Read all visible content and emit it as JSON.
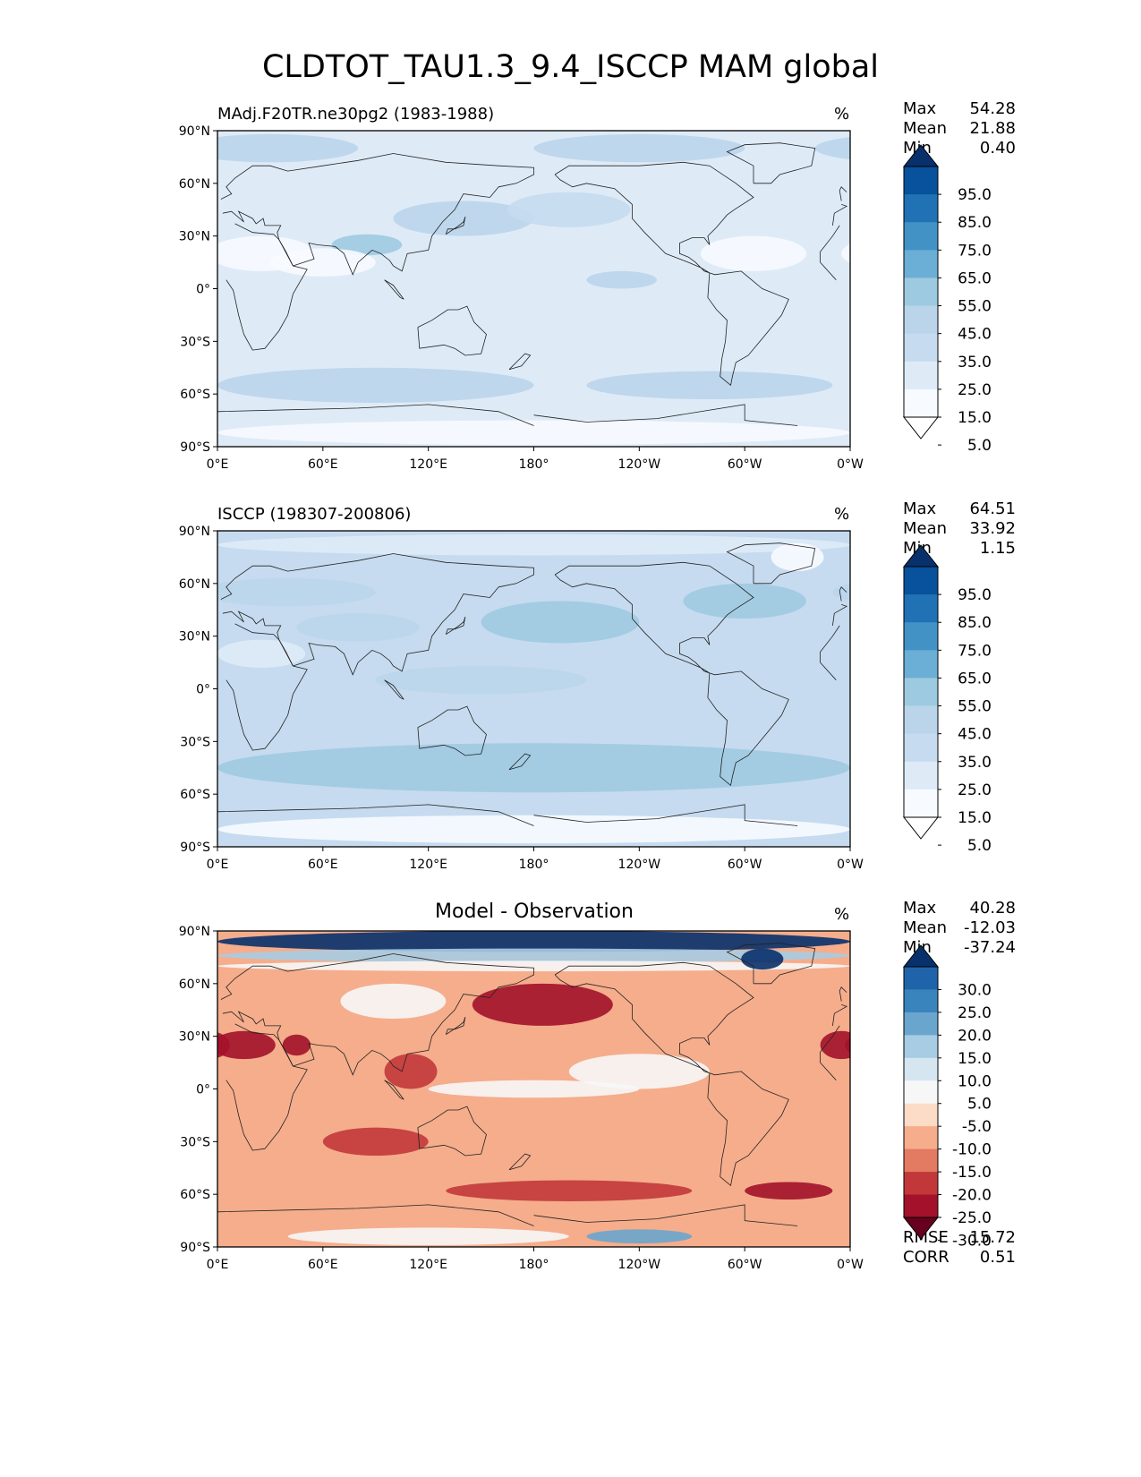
{
  "figure": {
    "title": "CLDTOT_TAU1.3_9.4_ISCCP MAM global"
  },
  "axes": {
    "lat_ticks": [
      "90°N",
      "60°N",
      "30°N",
      "0°",
      "30°S",
      "60°S",
      "90°S"
    ],
    "lon_ticks": [
      "0°E",
      "60°E",
      "120°E",
      "180°",
      "120°W",
      "60°W",
      "0°W"
    ]
  },
  "chart_data": [
    {
      "type": "heatmap",
      "panel": "test",
      "title": "MAdj.F20TR.ne30pg2 (1983-1988)",
      "units": "%",
      "stats": [
        {
          "label": "Max",
          "value": "54.28"
        },
        {
          "label": "Mean",
          "value": "21.88"
        },
        {
          "label": "Min",
          "value": "0.40"
        }
      ],
      "colorbar": {
        "levels": [
          "95.0",
          "85.0",
          "75.0",
          "65.0",
          "55.0",
          "45.0",
          "35.0",
          "25.0",
          "15.0",
          "5.0"
        ],
        "colors": [
          "#08306b",
          "#08519c",
          "#2171b5",
          "#4292c6",
          "#6baed6",
          "#9ecae1",
          "#bad5ea",
          "#c6dbef",
          "#deebf7",
          "#f7fbff",
          "#ffffff"
        ]
      },
      "xlim": [
        0,
        360
      ],
      "ylim": [
        -90,
        90
      ],
      "base_value": 22,
      "anomalies": [
        {
          "lon": 30,
          "lat": 80,
          "rx": 50,
          "ry": 8,
          "value": 40
        },
        {
          "lon": 240,
          "lat": 80,
          "rx": 60,
          "ry": 8,
          "value": 38
        },
        {
          "lon": 85,
          "lat": 25,
          "rx": 20,
          "ry": 6,
          "value": 45
        },
        {
          "lon": 140,
          "lat": 40,
          "rx": 40,
          "ry": 10,
          "value": 35
        },
        {
          "lon": 200,
          "lat": 45,
          "rx": 35,
          "ry": 10,
          "value": 33
        },
        {
          "lon": 230,
          "lat": 5,
          "rx": 20,
          "ry": 5,
          "value": 38
        },
        {
          "lon": 90,
          "lat": -55,
          "rx": 90,
          "ry": 10,
          "value": 38
        },
        {
          "lon": 280,
          "lat": -55,
          "rx": 70,
          "ry": 8,
          "value": 36
        },
        {
          "lon": 25,
          "lat": 20,
          "rx": 30,
          "ry": 10,
          "value": 10
        },
        {
          "lon": 60,
          "lat": 15,
          "rx": 30,
          "ry": 8,
          "value": 12
        },
        {
          "lon": 180,
          "lat": -82,
          "rx": 180,
          "ry": 7,
          "value": 6
        },
        {
          "lon": 305,
          "lat": 20,
          "rx": 30,
          "ry": 10,
          "value": 14
        }
      ]
    },
    {
      "type": "heatmap",
      "panel": "reference",
      "title": "ISCCP (198307-200806)",
      "units": "%",
      "stats": [
        {
          "label": "Max",
          "value": "64.51"
        },
        {
          "label": "Mean",
          "value": "33.92"
        },
        {
          "label": "Min",
          "value": "1.15"
        }
      ],
      "colorbar": {
        "levels": [
          "95.0",
          "85.0",
          "75.0",
          "65.0",
          "55.0",
          "45.0",
          "35.0",
          "25.0",
          "15.0",
          "5.0"
        ],
        "colors": [
          "#08306b",
          "#08519c",
          "#2171b5",
          "#4292c6",
          "#6baed6",
          "#9ecae1",
          "#bad5ea",
          "#c6dbef",
          "#deebf7",
          "#f7fbff",
          "#ffffff"
        ]
      },
      "xlim": [
        0,
        360
      ],
      "ylim": [
        -90,
        90
      ],
      "base_value": 33,
      "anomalies": [
        {
          "lon": 180,
          "lat": -45,
          "rx": 180,
          "ry": 14,
          "value": 50
        },
        {
          "lon": 195,
          "lat": 38,
          "rx": 45,
          "ry": 12,
          "value": 48
        },
        {
          "lon": 300,
          "lat": 50,
          "rx": 35,
          "ry": 10,
          "value": 46
        },
        {
          "lon": 80,
          "lat": 35,
          "rx": 35,
          "ry": 8,
          "value": 42
        },
        {
          "lon": 40,
          "lat": 55,
          "rx": 50,
          "ry": 8,
          "value": 42
        },
        {
          "lon": 180,
          "lat": 82,
          "rx": 180,
          "ry": 6,
          "value": 20
        },
        {
          "lon": 180,
          "lat": -80,
          "rx": 180,
          "ry": 8,
          "value": 14
        },
        {
          "lon": 25,
          "lat": 20,
          "rx": 25,
          "ry": 8,
          "value": 22
        },
        {
          "lon": 330,
          "lat": 75,
          "rx": 15,
          "ry": 8,
          "value": 10
        },
        {
          "lon": 150,
          "lat": 5,
          "rx": 60,
          "ry": 8,
          "value": 40
        }
      ]
    },
    {
      "type": "heatmap",
      "panel": "difference",
      "title": "Model - Observation",
      "units": "%",
      "stats": [
        {
          "label": "Max",
          "value": "40.28"
        },
        {
          "label": "Mean",
          "value": "-12.03"
        },
        {
          "label": "Min",
          "value": "-37.24"
        }
      ],
      "extra_stats": [
        {
          "label": "RMSE",
          "value": "15.72"
        },
        {
          "label": "CORR",
          "value": "0.51"
        }
      ],
      "colorbar": {
        "levels": [
          "30.0",
          "25.0",
          "20.0",
          "15.0",
          "10.0",
          "5.0",
          "-5.0",
          "-10.0",
          "-15.0",
          "-20.0",
          "-25.0",
          "-30.0"
        ],
        "colors": [
          "#08306b",
          "#1f64aa",
          "#3a84bd",
          "#6aa5cd",
          "#a7cce3",
          "#d5e6f1",
          "#f7f7f7",
          "#fcdbc7",
          "#f5ad8c",
          "#e27b62",
          "#c2383a",
          "#a3122a",
          "#67001f"
        ]
      },
      "xlim": [
        0,
        360
      ],
      "ylim": [
        -90,
        90
      ],
      "base_value": -12,
      "anomalies": [
        {
          "lon": 180,
          "lat": 84,
          "rx": 180,
          "ry": 6,
          "value": 35
        },
        {
          "lon": 180,
          "lat": 76,
          "rx": 180,
          "ry": 4,
          "value": 12
        },
        {
          "lon": 180,
          "lat": 70,
          "rx": 180,
          "ry": 3,
          "value": 0
        },
        {
          "lon": 310,
          "lat": 74,
          "rx": 12,
          "ry": 6,
          "value": 30
        },
        {
          "lon": 185,
          "lat": 48,
          "rx": 40,
          "ry": 12,
          "value": -26
        },
        {
          "lon": 15,
          "lat": 25,
          "rx": 18,
          "ry": 8,
          "value": -30
        },
        {
          "lon": 45,
          "lat": 25,
          "rx": 8,
          "ry": 6,
          "value": -28
        },
        {
          "lon": 200,
          "lat": -58,
          "rx": 70,
          "ry": 6,
          "value": -25
        },
        {
          "lon": 325,
          "lat": -58,
          "rx": 25,
          "ry": 5,
          "value": -30
        },
        {
          "lon": 355,
          "lat": 25,
          "rx": 12,
          "ry": 8,
          "value": -28
        },
        {
          "lon": 240,
          "lat": 10,
          "rx": 40,
          "ry": 10,
          "value": -3
        },
        {
          "lon": 180,
          "lat": 0,
          "rx": 60,
          "ry": 5,
          "value": -4
        },
        {
          "lon": 100,
          "lat": 50,
          "rx": 30,
          "ry": 10,
          "value": -4
        },
        {
          "lon": 240,
          "lat": -84,
          "rx": 30,
          "ry": 4,
          "value": 18
        },
        {
          "lon": 120,
          "lat": -84,
          "rx": 80,
          "ry": 5,
          "value": 2
        },
        {
          "lon": 110,
          "lat": 10,
          "rx": 15,
          "ry": 10,
          "value": -22
        },
        {
          "lon": 90,
          "lat": -30,
          "rx": 30,
          "ry": 8,
          "value": -22
        }
      ]
    }
  ]
}
